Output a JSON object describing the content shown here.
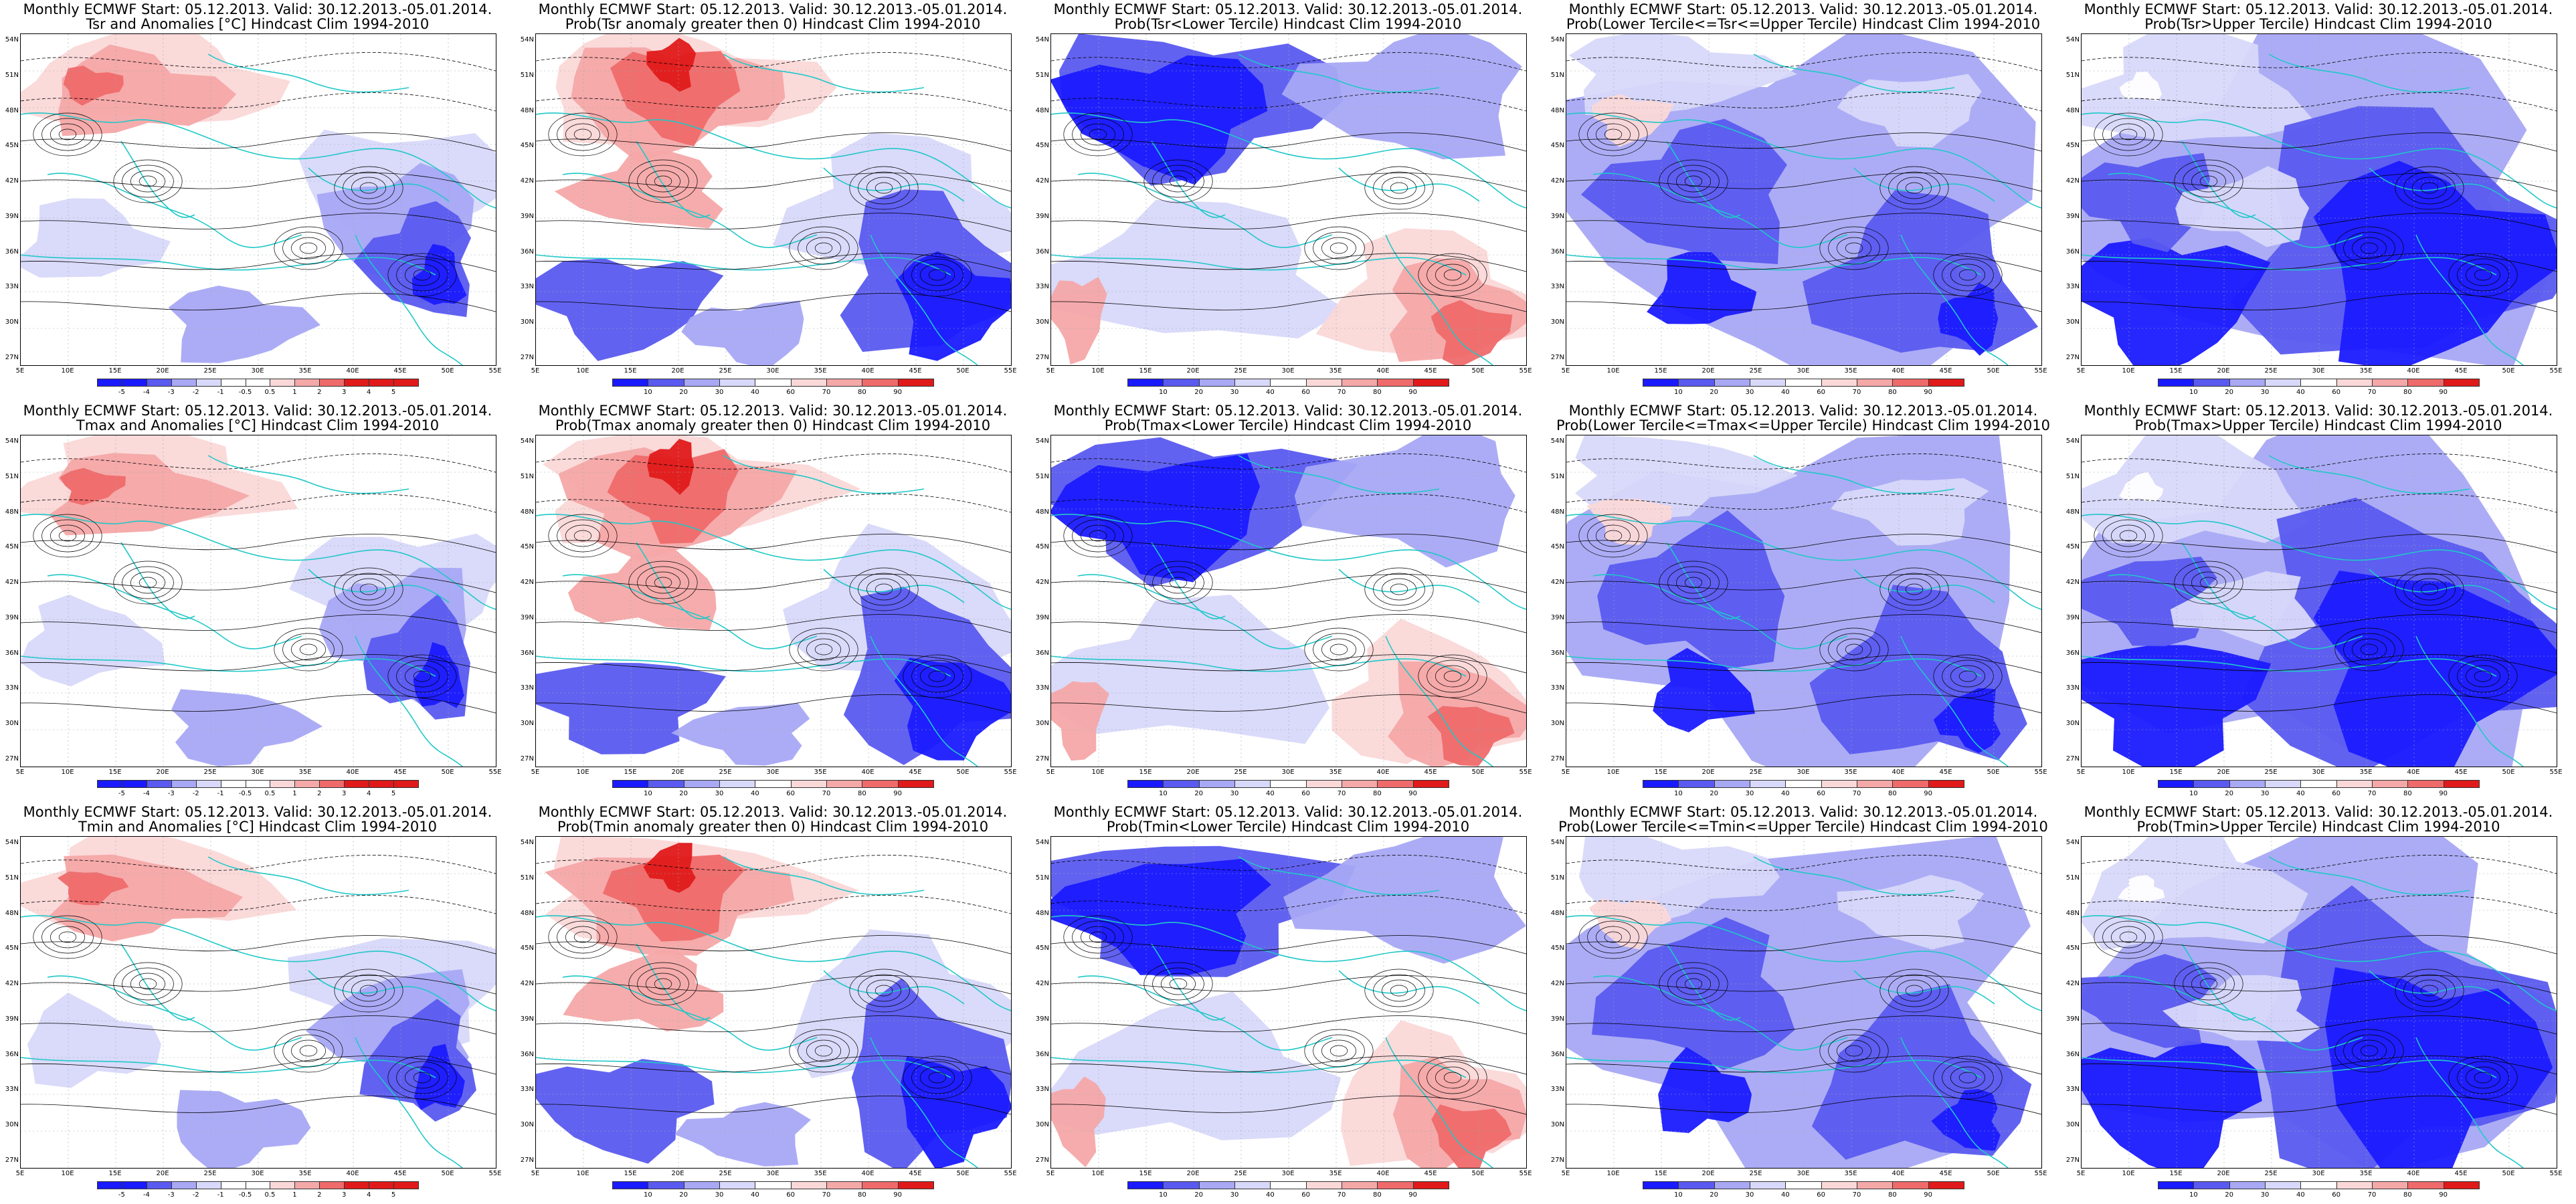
{
  "colors": {
    "deep_blue": "#1a1aff",
    "mid_blue": "#5a5af0",
    "light_blue": "#a8a8f5",
    "pale_blue": "#d8d8fa",
    "white": "#ffffff",
    "pale_red": "#fbd8d8",
    "light_red": "#f5a8a8",
    "mid_red": "#ef6a6a",
    "deep_red": "#e01a1a",
    "coast": "#20c8c8",
    "contour": "#000000"
  },
  "axes": {
    "lat_ticks": [
      "54N",
      "51N",
      "48N",
      "45N",
      "42N",
      "39N",
      "36N",
      "33N",
      "30N",
      "27N"
    ],
    "lon_ticks": [
      "5E",
      "10E",
      "15E",
      "20E",
      "25E",
      "30E",
      "35E",
      "40E",
      "45E",
      "50E",
      "55E"
    ]
  },
  "colorbars": {
    "anomaly": [
      "-5",
      "-4",
      "-3",
      "-2",
      "-1",
      "-0.5",
      "0.5",
      "1",
      "2",
      "3",
      "4",
      "5"
    ],
    "probability": [
      "10",
      "20",
      "30",
      "40",
      "60",
      "70",
      "80",
      "90"
    ]
  },
  "panels": [
    {
      "line1": "Monthly ECMWF Start: 05.12.2013. Valid: 30.12.2013.-05.01.2014.",
      "line2": "Tsr and Anomalies [°C] Hindcast Clim 1994-2010",
      "bar": "anomaly",
      "scheme": "anomaly"
    },
    {
      "line1": "Monthly ECMWF Start: 05.12.2013. Valid: 30.12.2013.-05.01.2014.",
      "line2": "Prob(Tsr anomaly greater then 0) Hindcast Clim 1994-2010",
      "bar": "probability",
      "scheme": "warm"
    },
    {
      "line1": "Monthly ECMWF Start: 05.12.2013. Valid: 30.12.2013.-05.01.2014.",
      "line2": "Prob(Tsr<Lower Tercile) Hindcast Clim 1994-2010",
      "bar": "probability",
      "scheme": "lower"
    },
    {
      "line1": "Monthly ECMWF Start: 05.12.2013. Valid: 30.12.2013.-05.01.2014.",
      "line2": "Prob(Lower Tercile<=Tsr<=Upper Tercile) Hindcast Clim 1994-2010",
      "bar": "probability",
      "scheme": "middle"
    },
    {
      "line1": "Monthly ECMWF Start: 05.12.2013. Valid: 30.12.2013.-05.01.2014.",
      "line2": "Prob(Tsr>Upper Tercile) Hindcast Clim 1994-2010",
      "bar": "probability",
      "scheme": "upper"
    },
    {
      "line1": "Monthly ECMWF Start: 05.12.2013. Valid: 30.12.2013.-05.01.2014.",
      "line2": "Tmax and Anomalies [°C] Hindcast Clim 1994-2010",
      "bar": "anomaly",
      "scheme": "anomaly"
    },
    {
      "line1": "Monthly ECMWF Start: 05.12.2013. Valid: 30.12.2013.-05.01.2014.",
      "line2": "Prob(Tmax anomaly greater then 0) Hindcast Clim 1994-2010",
      "bar": "probability",
      "scheme": "warm"
    },
    {
      "line1": "Monthly ECMWF Start: 05.12.2013. Valid: 30.12.2013.-05.01.2014.",
      "line2": "Prob(Tmax<Lower Tercile) Hindcast Clim 1994-2010",
      "bar": "probability",
      "scheme": "lower"
    },
    {
      "line1": "Monthly ECMWF Start: 05.12.2013. Valid: 30.12.2013.-05.01.2014.",
      "line2": "Prob(Lower Tercile<=Tmax<=Upper Tercile) Hindcast Clim 1994-2010",
      "bar": "probability",
      "scheme": "middle"
    },
    {
      "line1": "Monthly ECMWF Start: 05.12.2013. Valid: 30.12.2013.-05.01.2014.",
      "line2": "Prob(Tmax>Upper Tercile) Hindcast Clim 1994-2010",
      "bar": "probability",
      "scheme": "upper"
    },
    {
      "line1": "Monthly ECMWF Start: 05.12.2013. Valid: 30.12.2013.-05.01.2014.",
      "line2": "Tmin and Anomalies [°C] Hindcast Clim 1994-2010",
      "bar": "anomaly",
      "scheme": "anomaly"
    },
    {
      "line1": "Monthly ECMWF Start: 05.12.2013. Valid: 30.12.2013.-05.01.2014.",
      "line2": "Prob(Tmin anomaly greater then 0) Hindcast Clim 1994-2010",
      "bar": "probability",
      "scheme": "warm"
    },
    {
      "line1": "Monthly ECMWF Start: 05.12.2013. Valid: 30.12.2013.-05.01.2014.",
      "line2": "Prob(Tmin<Lower Tercile) Hindcast Clim 1994-2010",
      "bar": "probability",
      "scheme": "lower"
    },
    {
      "line1": "Monthly ECMWF Start: 05.12.2013. Valid: 30.12.2013.-05.01.2014.",
      "line2": "Prob(Lower Tercile<=Tmin<=Upper Tercile) Hindcast Clim 1994-2010",
      "bar": "probability",
      "scheme": "middle"
    },
    {
      "line1": "Monthly ECMWF Start: 05.12.2013. Valid: 30.12.2013.-05.01.2014.",
      "line2": "Prob(Tmin>Upper Tercile) Hindcast Clim 1994-2010",
      "bar": "probability",
      "scheme": "upper"
    }
  ]
}
